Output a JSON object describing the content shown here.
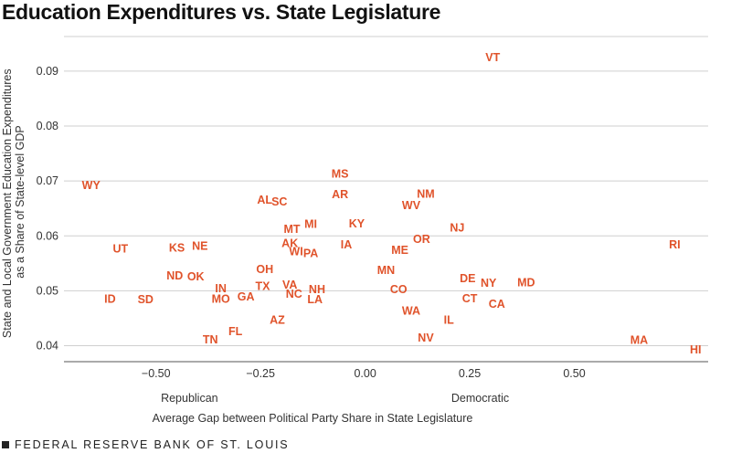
{
  "title": "Education Expenditures vs. State Legislature",
  "footer": "FEDERAL RESERVE BANK OF ST. LOUIS",
  "chart_data": {
    "type": "scatter",
    "title": "Education Expenditures vs. State Legislature",
    "xlabel": "Average Gap between Political Party Share in State Legislature",
    "ylabel_lines": [
      "State and Local Government Education Expenditures",
      "as a Share of State-level GDP"
    ],
    "x_direction_labels": [
      "Republican",
      "Democratic"
    ],
    "xlim": [
      -0.72,
      0.82
    ],
    "ylim": [
      0.0371,
      0.0963
    ],
    "xticks": [
      -0.5,
      -0.25,
      0.0,
      0.25,
      0.5
    ],
    "xtick_labels": [
      "−0.50",
      "−0.25",
      "0.00",
      "0.25",
      "0.50"
    ],
    "yticks": [
      0.04,
      0.05,
      0.06,
      0.07,
      0.08,
      0.09
    ],
    "ytick_labels": [
      "0.04",
      "0.05",
      "0.06",
      "0.07",
      "0.08",
      "0.09"
    ],
    "grid": "horizontal",
    "point_color": "#e0532b",
    "points": [
      {
        "label": "VT",
        "x": 0.305,
        "y": 0.0925
      },
      {
        "label": "MS",
        "x": -0.06,
        "y": 0.0713
      },
      {
        "label": "WY",
        "x": -0.655,
        "y": 0.0692
      },
      {
        "label": "AR",
        "x": -0.06,
        "y": 0.0675
      },
      {
        "label": "NM",
        "x": 0.145,
        "y": 0.0676
      },
      {
        "label": "AL",
        "x": -0.24,
        "y": 0.0665
      },
      {
        "label": "SC",
        "x": -0.205,
        "y": 0.0662
      },
      {
        "label": "WV",
        "x": 0.11,
        "y": 0.0655
      },
      {
        "label": "KY",
        "x": -0.02,
        "y": 0.0622
      },
      {
        "label": "MI",
        "x": -0.13,
        "y": 0.0621
      },
      {
        "label": "NJ",
        "x": 0.22,
        "y": 0.0615
      },
      {
        "label": "MT",
        "x": -0.175,
        "y": 0.0612
      },
      {
        "label": "OR",
        "x": 0.135,
        "y": 0.0594
      },
      {
        "label": "AK",
        "x": -0.18,
        "y": 0.0586
      },
      {
        "label": "IA",
        "x": -0.045,
        "y": 0.0584
      },
      {
        "label": "RI",
        "x": 0.74,
        "y": 0.0584
      },
      {
        "label": "KS",
        "x": -0.45,
        "y": 0.0578
      },
      {
        "label": "NE",
        "x": -0.395,
        "y": 0.0581
      },
      {
        "label": "UT",
        "x": -0.585,
        "y": 0.0576
      },
      {
        "label": "ME",
        "x": 0.083,
        "y": 0.0574
      },
      {
        "label": "WI",
        "x": -0.165,
        "y": 0.0571
      },
      {
        "label": "PA",
        "x": -0.13,
        "y": 0.0568
      },
      {
        "label": "OH",
        "x": -0.24,
        "y": 0.0539
      },
      {
        "label": "MN",
        "x": 0.05,
        "y": 0.0537
      },
      {
        "label": "ND",
        "x": -0.455,
        "y": 0.0527
      },
      {
        "label": "OK",
        "x": -0.405,
        "y": 0.0526
      },
      {
        "label": "DE",
        "x": 0.245,
        "y": 0.0522
      },
      {
        "label": "NY",
        "x": 0.295,
        "y": 0.0514
      },
      {
        "label": "MD",
        "x": 0.385,
        "y": 0.0515
      },
      {
        "label": "VA",
        "x": -0.18,
        "y": 0.0511
      },
      {
        "label": "TX",
        "x": -0.245,
        "y": 0.0508
      },
      {
        "label": "IN",
        "x": -0.345,
        "y": 0.0504
      },
      {
        "label": "NH",
        "x": -0.115,
        "y": 0.0502
      },
      {
        "label": "CO",
        "x": 0.08,
        "y": 0.0502
      },
      {
        "label": "NC",
        "x": -0.17,
        "y": 0.0494
      },
      {
        "label": "GA",
        "x": -0.285,
        "y": 0.0489
      },
      {
        "label": "MO",
        "x": -0.345,
        "y": 0.0485
      },
      {
        "label": "ID",
        "x": -0.61,
        "y": 0.0485
      },
      {
        "label": "SD",
        "x": -0.525,
        "y": 0.0484
      },
      {
        "label": "CT",
        "x": 0.25,
        "y": 0.0486
      },
      {
        "label": "LA",
        "x": -0.12,
        "y": 0.0484
      },
      {
        "label": "CA",
        "x": 0.315,
        "y": 0.0476
      },
      {
        "label": "WA",
        "x": 0.11,
        "y": 0.0463
      },
      {
        "label": "AZ",
        "x": -0.21,
        "y": 0.0447
      },
      {
        "label": "IL",
        "x": 0.2,
        "y": 0.0447
      },
      {
        "label": "FL",
        "x": -0.31,
        "y": 0.0426
      },
      {
        "label": "NV",
        "x": 0.145,
        "y": 0.0414
      },
      {
        "label": "TN",
        "x": -0.37,
        "y": 0.0411
      },
      {
        "label": "MA",
        "x": 0.655,
        "y": 0.041
      },
      {
        "label": "HI",
        "x": 0.79,
        "y": 0.0393
      }
    ]
  }
}
